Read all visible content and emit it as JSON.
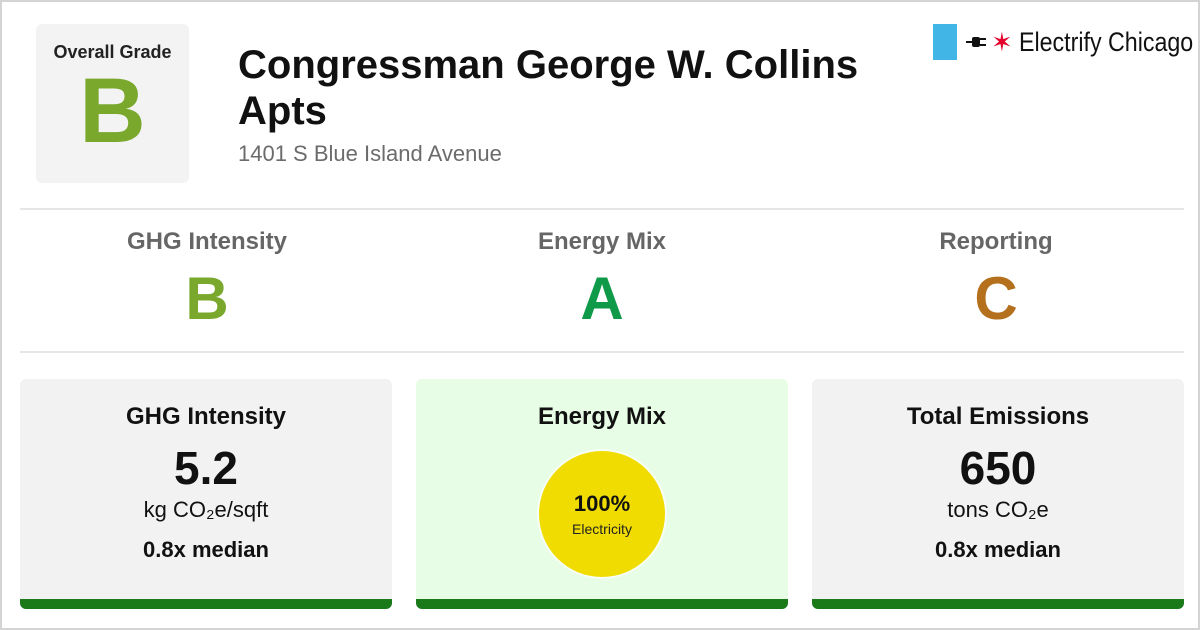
{
  "overall": {
    "label": "Overall Grade",
    "grade": "B",
    "color": "#79a82d"
  },
  "building": {
    "name": "Congressman George W. Collins Apts",
    "address": "1401 S Blue Island Avenue"
  },
  "brand": {
    "name": "Electrify Chicago",
    "flag_color": "#41b6e6",
    "star_color": "#e4002b",
    "icons": [
      "chicago-flag-icon",
      "plug-icon",
      "star-icon"
    ]
  },
  "sub_grades": [
    {
      "name": "GHG Intensity",
      "grade": "B",
      "color": "#79a82d"
    },
    {
      "name": "Energy Mix",
      "grade": "A",
      "color": "#0f9a4a"
    },
    {
      "name": "Reporting",
      "grade": "C",
      "color": "#b5701e"
    }
  ],
  "cards": {
    "ghg": {
      "title": "GHG Intensity",
      "value": "5.2",
      "unit": "kg CO₂e/sqft",
      "median": "0.8x median"
    },
    "mix": {
      "title": "Energy Mix",
      "percent": "100%",
      "source": "Electricity",
      "circle_color": "#f0dc00"
    },
    "emissions": {
      "title": "Total Emissions",
      "value": "650",
      "unit": "tons CO₂e",
      "median": "0.8x median"
    }
  },
  "bar_color": "#1a7a1a"
}
